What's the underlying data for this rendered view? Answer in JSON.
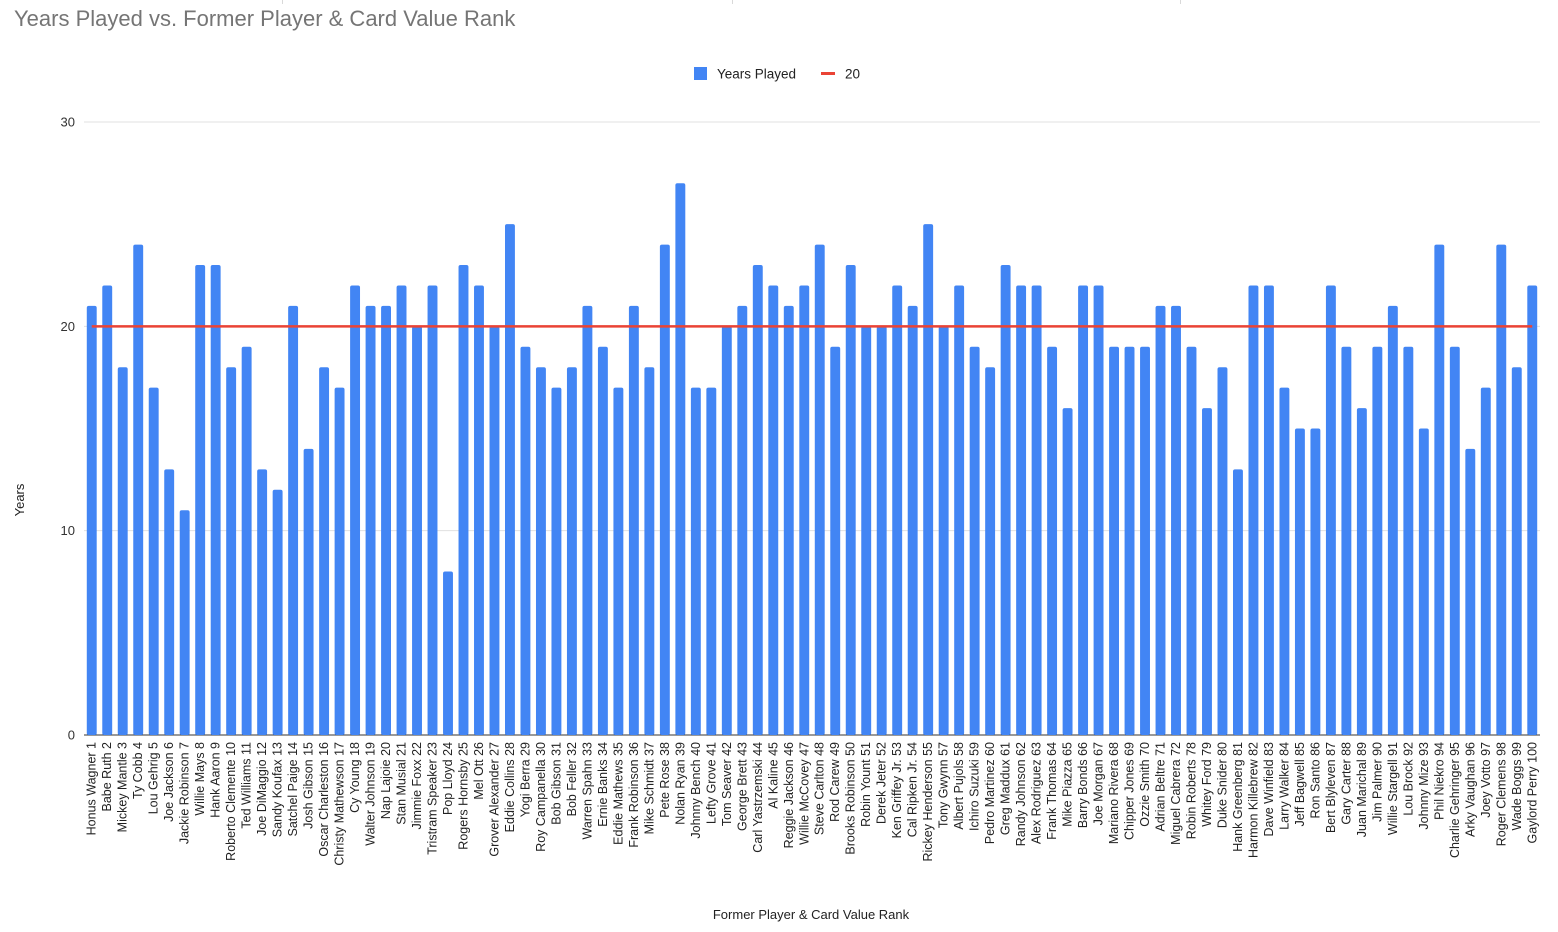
{
  "chart_data": {
    "type": "bar",
    "title": "Years Played vs. Former Player & Card Value Rank",
    "xlabel": "Former Player & Card Value Rank",
    "ylabel": "Years",
    "ylim": [
      0,
      30
    ],
    "yticks": [
      "0",
      "10",
      "20",
      "30"
    ],
    "grid": true,
    "legend_position": "top",
    "colors": {
      "bar": "#4285f4",
      "reference": "#ea4335",
      "grid": "#e0e0e0",
      "title": "#757575"
    },
    "categories": [
      "Honus Wagner 1",
      "Babe Ruth 2",
      "Mickey Mantle 3",
      "Ty Cobb 4",
      "Lou Gehrig 5",
      "Joe Jackson 6",
      "Jackie Robinson 7",
      "Willie Mays 8",
      "Hank Aaron 9",
      "Roberto Clemente 10",
      "Ted Williams 11",
      "Joe DiMaggio 12",
      "Sandy Koufax 13",
      "Satchel Paige 14",
      "Josh Gibson 15",
      "Oscar Charleston 16",
      "Christy Mathewson 17",
      "Cy Young 18",
      "Walter Johnson 19",
      "Nap Lajoie 20",
      "Stan Musial 21",
      "Jimmie Foxx 22",
      "Tristram Speaker 23",
      "Pop Lloyd 24",
      "Rogers Hornsby 25",
      "Mel Ott 26",
      "Grover Alexander 27",
      "Eddie Collins 28",
      "Yogi Berra 29",
      "Roy Campanella 30",
      "Bob Gibson 31",
      "Bob Feller 32",
      "Warren Spahn 33",
      "Ernie Banks 34",
      "Eddie Mathews 35",
      "Frank Robinson 36",
      "Mike Schmidt 37",
      "Pete Rose 38",
      "Nolan Ryan 39",
      "Johnny Bench 40",
      "Lefty Grove 41",
      "Tom Seaver 42",
      "George Brett 43",
      "Carl Yastrzemski 44",
      "Al Kaline 45",
      "Reggie Jackson 46",
      "Willie McCovey 47",
      "Steve Carlton 48",
      "Rod Carew 49",
      "Brooks Robinson 50",
      "Robin Yount 51",
      "Derek Jeter 52",
      "Ken Griffey Jr. 53",
      "Cal Ripken Jr. 54",
      "Rickey Henderson 55",
      "Tony Gwynn 57",
      "Albert Pujols 58",
      "Ichiro Suzuki 59",
      "Pedro Martinez 60",
      "Greg Maddux 61",
      "Randy Johnson 62",
      "Alex Rodriguez 63",
      "Frank Thomas 64",
      "Mike Piazza 65",
      "Barry Bonds 66",
      "Joe Morgan 67",
      "Mariano Rivera 68",
      "Chipper Jones 69",
      "Ozzie Smith 70",
      "Adrian Beltre 71",
      "Miguel Cabrera 72",
      "Robin Roberts 78",
      "Whitey Ford 79",
      "Duke Snider 80",
      "Hank Greenberg 81",
      "Harmon Killebrew 82",
      "Dave Winfield 83",
      "Larry Walker 84",
      "Jeff Bagwell 85",
      "Ron Santo 86",
      "Bert Blyleven 87",
      "Gary Carter 88",
      "Juan Marichal 89",
      "Jim Palmer 90",
      "Willie Stargell 91",
      "Lou Brock 92",
      "Johnny Mize 93",
      "Phil Niekro 94",
      "Charlie Gehringer 95",
      "Arky Vaughan 96",
      "Joey Votto 97",
      "Roger Clemens 98",
      "Wade Boggs 99",
      "Gaylord Perry 100"
    ],
    "series": [
      {
        "name": "Years Played",
        "values": [
          21,
          22,
          18,
          24,
          17,
          13,
          11,
          23,
          23,
          18,
          19,
          13,
          12,
          21,
          14,
          18,
          17,
          22,
          21,
          21,
          22,
          20,
          22,
          8,
          23,
          22,
          20,
          25,
          19,
          18,
          17,
          18,
          21,
          19,
          17,
          21,
          18,
          24,
          27,
          17,
          17,
          20,
          21,
          23,
          22,
          21,
          22,
          24,
          19,
          23,
          20,
          20,
          22,
          21,
          25,
          20,
          22,
          19,
          18,
          23,
          22,
          22,
          19,
          16,
          22,
          22,
          19,
          19,
          19,
          21,
          21,
          19,
          16,
          18,
          13,
          22,
          22,
          17,
          15,
          15,
          22,
          19,
          16,
          19,
          21,
          19,
          15,
          24,
          19,
          14,
          17,
          24,
          18,
          22
        ]
      },
      {
        "name": "20",
        "type": "line",
        "constant": 20
      }
    ]
  }
}
